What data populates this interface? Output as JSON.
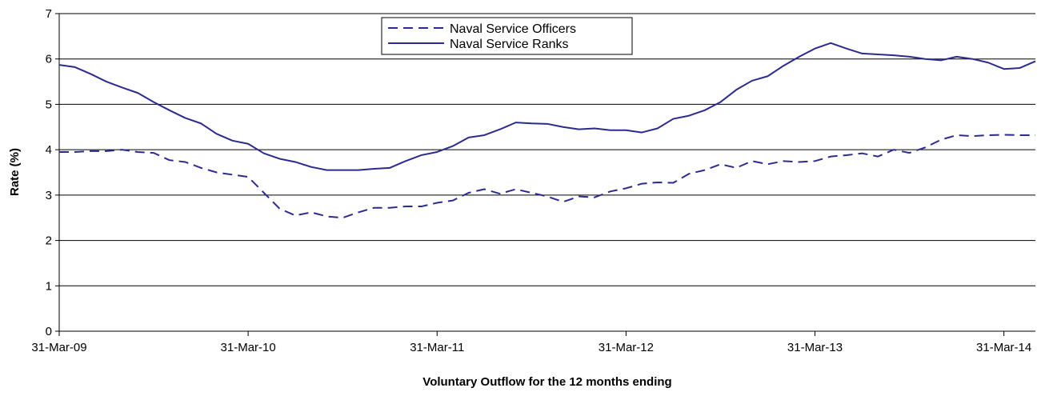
{
  "chart_data": {
    "type": "line",
    "title": "",
    "xlabel": "Voluntary Outflow for the 12 months ending",
    "ylabel": "Rate (%)",
    "ylim": [
      0,
      7
    ],
    "yticks": [
      0,
      1,
      2,
      3,
      4,
      5,
      6,
      7
    ],
    "grid": "horizontal",
    "legend_position": "top-center",
    "x_start": "2009-03",
    "x_tick_labels": [
      "31-Mar-09",
      "31-Mar-10",
      "31-Mar-11",
      "31-Mar-12",
      "31-Mar-13",
      "31-Mar-14"
    ],
    "x_tick_months": [
      "2009-03",
      "2010-03",
      "2011-03",
      "2012-03",
      "2013-03",
      "2014-03"
    ],
    "xlim": [
      "2009-03",
      "2014-05"
    ],
    "colors": {
      "line": "#2b2b8f",
      "grid": "#000000"
    },
    "series": [
      {
        "name": "Naval Service Officers",
        "style": "dashed",
        "values": [
          3.95,
          3.95,
          3.97,
          3.97,
          4.0,
          3.95,
          3.93,
          3.77,
          3.73,
          3.6,
          3.5,
          3.45,
          3.4,
          3.05,
          2.7,
          2.55,
          2.62,
          2.53,
          2.5,
          2.62,
          2.72,
          2.72,
          2.75,
          2.75,
          2.83,
          2.88,
          3.05,
          3.13,
          3.03,
          3.13,
          3.05,
          2.97,
          2.85,
          2.97,
          2.95,
          3.08,
          3.15,
          3.25,
          3.28,
          3.27,
          3.47,
          3.55,
          3.68,
          3.6,
          3.75,
          3.68,
          3.75,
          3.73,
          3.75,
          3.85,
          3.88,
          3.92,
          3.85,
          4.0,
          3.93,
          4.05,
          4.22,
          4.32,
          4.3,
          4.32,
          4.33,
          4.32,
          4.32
        ]
      },
      {
        "name": "Naval Service Ranks",
        "style": "solid",
        "values": [
          5.87,
          5.82,
          5.67,
          5.5,
          5.37,
          5.25,
          5.05,
          4.87,
          4.7,
          4.58,
          4.35,
          4.2,
          4.13,
          3.92,
          3.8,
          3.73,
          3.62,
          3.55,
          3.55,
          3.55,
          3.58,
          3.6,
          3.75,
          3.88,
          3.95,
          4.08,
          4.27,
          4.32,
          4.45,
          4.6,
          4.58,
          4.57,
          4.5,
          4.45,
          4.47,
          4.43,
          4.43,
          4.38,
          4.47,
          4.68,
          4.75,
          4.87,
          5.05,
          5.32,
          5.52,
          5.62,
          5.85,
          6.05,
          6.23,
          6.35,
          6.23,
          6.12,
          6.1,
          6.08,
          6.05,
          6.0,
          5.97,
          6.05,
          6.0,
          5.92,
          5.78,
          5.8,
          5.95
        ]
      }
    ]
  }
}
